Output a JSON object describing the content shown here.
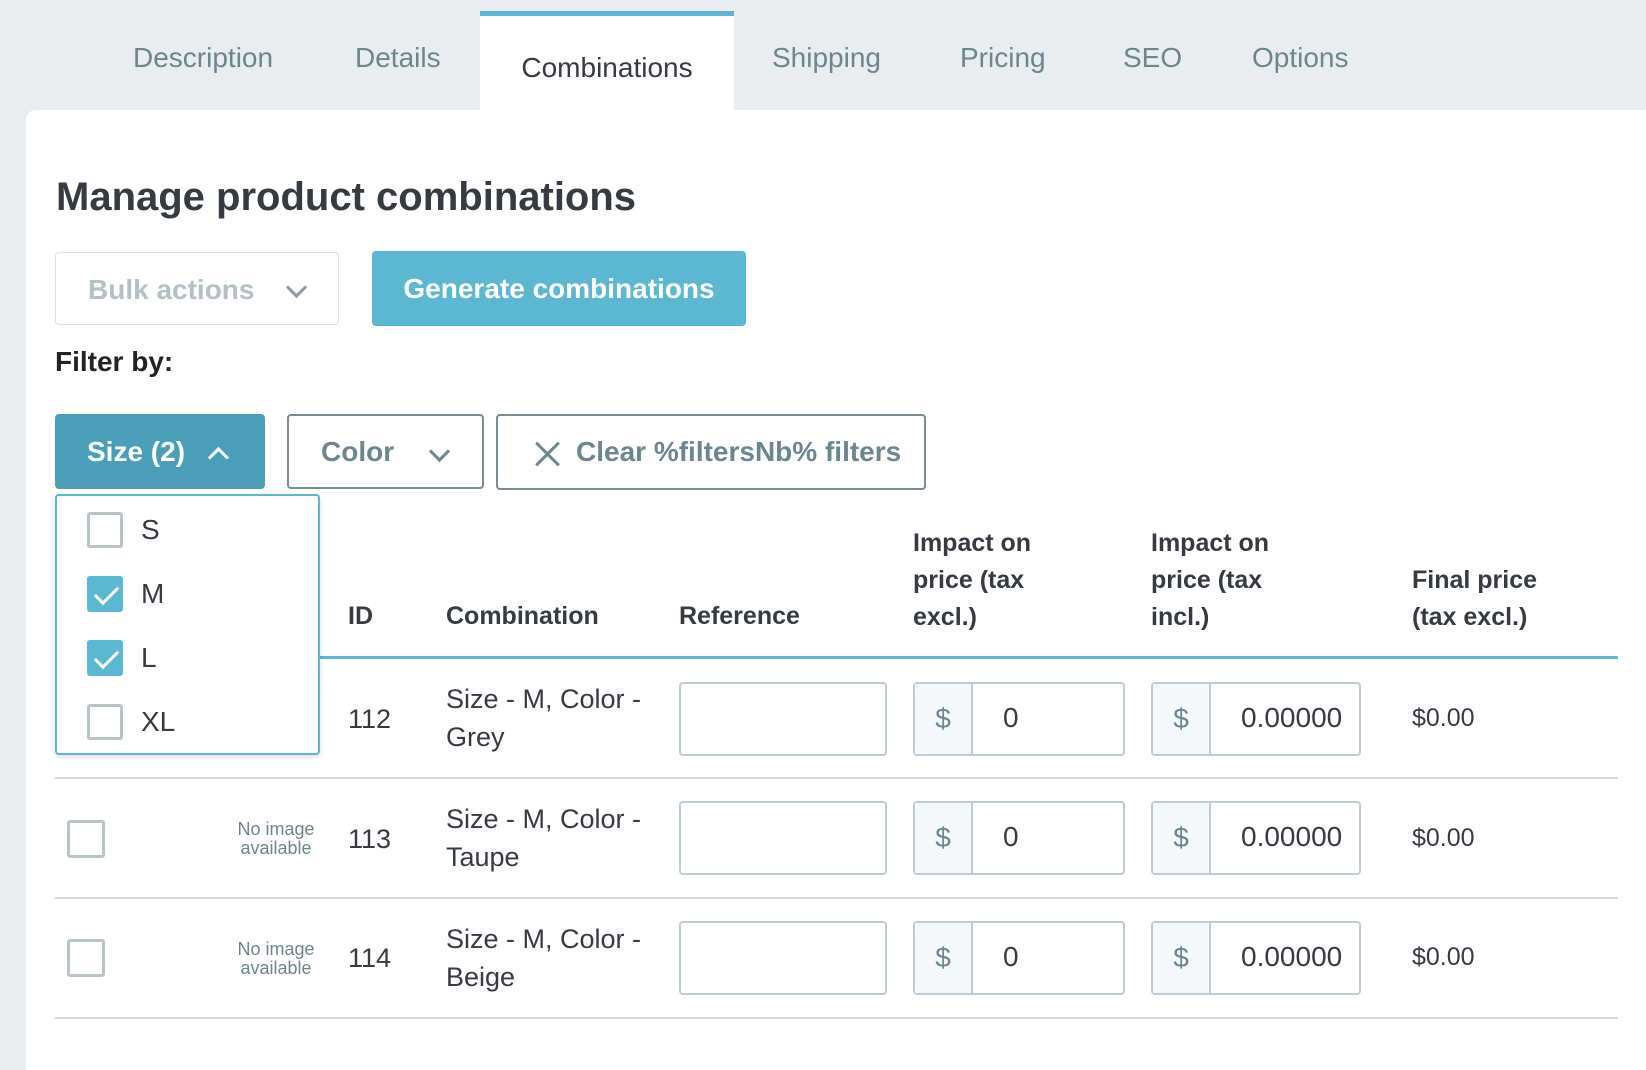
{
  "tabs": [
    "Description",
    "Details",
    "Combinations",
    "Shipping",
    "Pricing",
    "SEO",
    "Options"
  ],
  "page_title": "Manage product combinations",
  "bulk_actions": {
    "label": "Bulk actions"
  },
  "generate_button": "Generate combinations",
  "filter_label": "Filter by:",
  "size_filter": {
    "label": "Size (2)"
  },
  "color_filter": {
    "label": "Color"
  },
  "clear_filter": {
    "label": "Clear %filtersNb% filters"
  },
  "size_options": [
    {
      "label": "S",
      "checked": false
    },
    {
      "label": "M",
      "checked": true
    },
    {
      "label": "L",
      "checked": true
    },
    {
      "label": "XL",
      "checked": false
    }
  ],
  "table": {
    "headers": {
      "id": "ID",
      "combination": "Combination",
      "reference": "Reference",
      "impact_excl": [
        "Impact on",
        "price (tax",
        "excl.)"
      ],
      "impact_incl": [
        "Impact on",
        "price (tax",
        "incl.)"
      ],
      "final_price": [
        "Final price",
        "(tax excl.)"
      ]
    },
    "no_image": [
      "No image",
      "available"
    ],
    "currency": "$",
    "rows": [
      {
        "id": "112",
        "combination": [
          "Size - M, Color -",
          "Grey"
        ],
        "reference": "",
        "impact_excl": "0",
        "impact_incl": "0.00000",
        "final_price": "$0.00"
      },
      {
        "id": "113",
        "combination": [
          "Size - M, Color -",
          "Taupe"
        ],
        "reference": "",
        "impact_excl": "0",
        "impact_incl": "0.00000",
        "final_price": "$0.00"
      },
      {
        "id": "114",
        "combination": [
          "Size - M, Color -",
          "Beige"
        ],
        "reference": "",
        "impact_excl": "0",
        "impact_incl": "0.00000",
        "final_price": "$0.00"
      }
    ]
  },
  "colors": {
    "accent": "#5bb7d2",
    "accent_dark": "#4a9eba",
    "text": "#363a41",
    "muted": "#6c868e",
    "background": "#eaedf0"
  }
}
